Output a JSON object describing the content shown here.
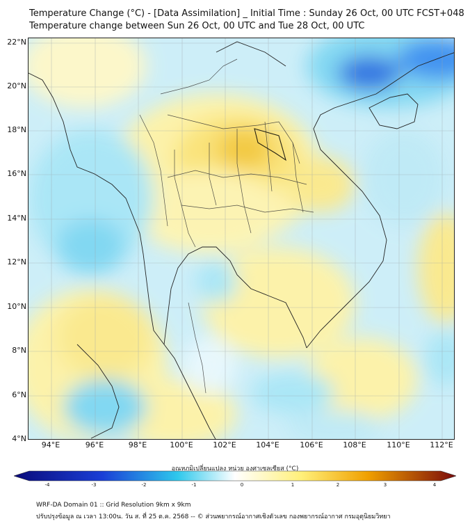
{
  "header": {
    "title_line1": "Temperature Change (°C) - [Data Assimilation] _ Initial Time : Sunday 26 Oct, 00 UTC FCST+048",
    "title_line2": "Temperature change between Sun 26 Oct, 00 UTC and Tue 28 Oct, 00 UTC"
  },
  "map": {
    "lat_labels": [
      "22°N",
      "20°N",
      "18°N",
      "16°N",
      "14°N",
      "12°N",
      "10°N",
      "8°N",
      "6°N",
      "4°N"
    ],
    "lon_labels": [
      "94°E",
      "96°E",
      "98°E",
      "100°E",
      "102°E",
      "104°E",
      "106°E",
      "108°E",
      "110°E",
      "112°E"
    ]
  },
  "colorbar": {
    "title": "อุณหภูมิเปลี่ยนแปลง หน่วย องศาเซลเซียส (°C)",
    "ticks": [
      "-4",
      "-3",
      "-2",
      "-1",
      "0",
      "1",
      "2",
      "3",
      "4"
    ],
    "colors": {
      "cold_end": "#0a0a7a",
      "cold": "#1a3fd6",
      "cool": "#2ec8ec",
      "neutral": "#ffffff",
      "warm": "#fff07a",
      "hot": "#f0a000",
      "hot_end": "#7a0a0a"
    }
  },
  "footer": {
    "line1": "WRF-DA Domain 01 :: Grid Resolution 9km x 9km",
    "line2": "ปรับปรุงข้อมูล ณ เวลา 13:00น. วัน ส. ที่ 25 ต.ค. 2568 -- © ส่วนพยากรณ์อากาศเชิงตัวเลข กองพยากรณ์อากาศ กรมอุตุนิยมวิทยา"
  }
}
